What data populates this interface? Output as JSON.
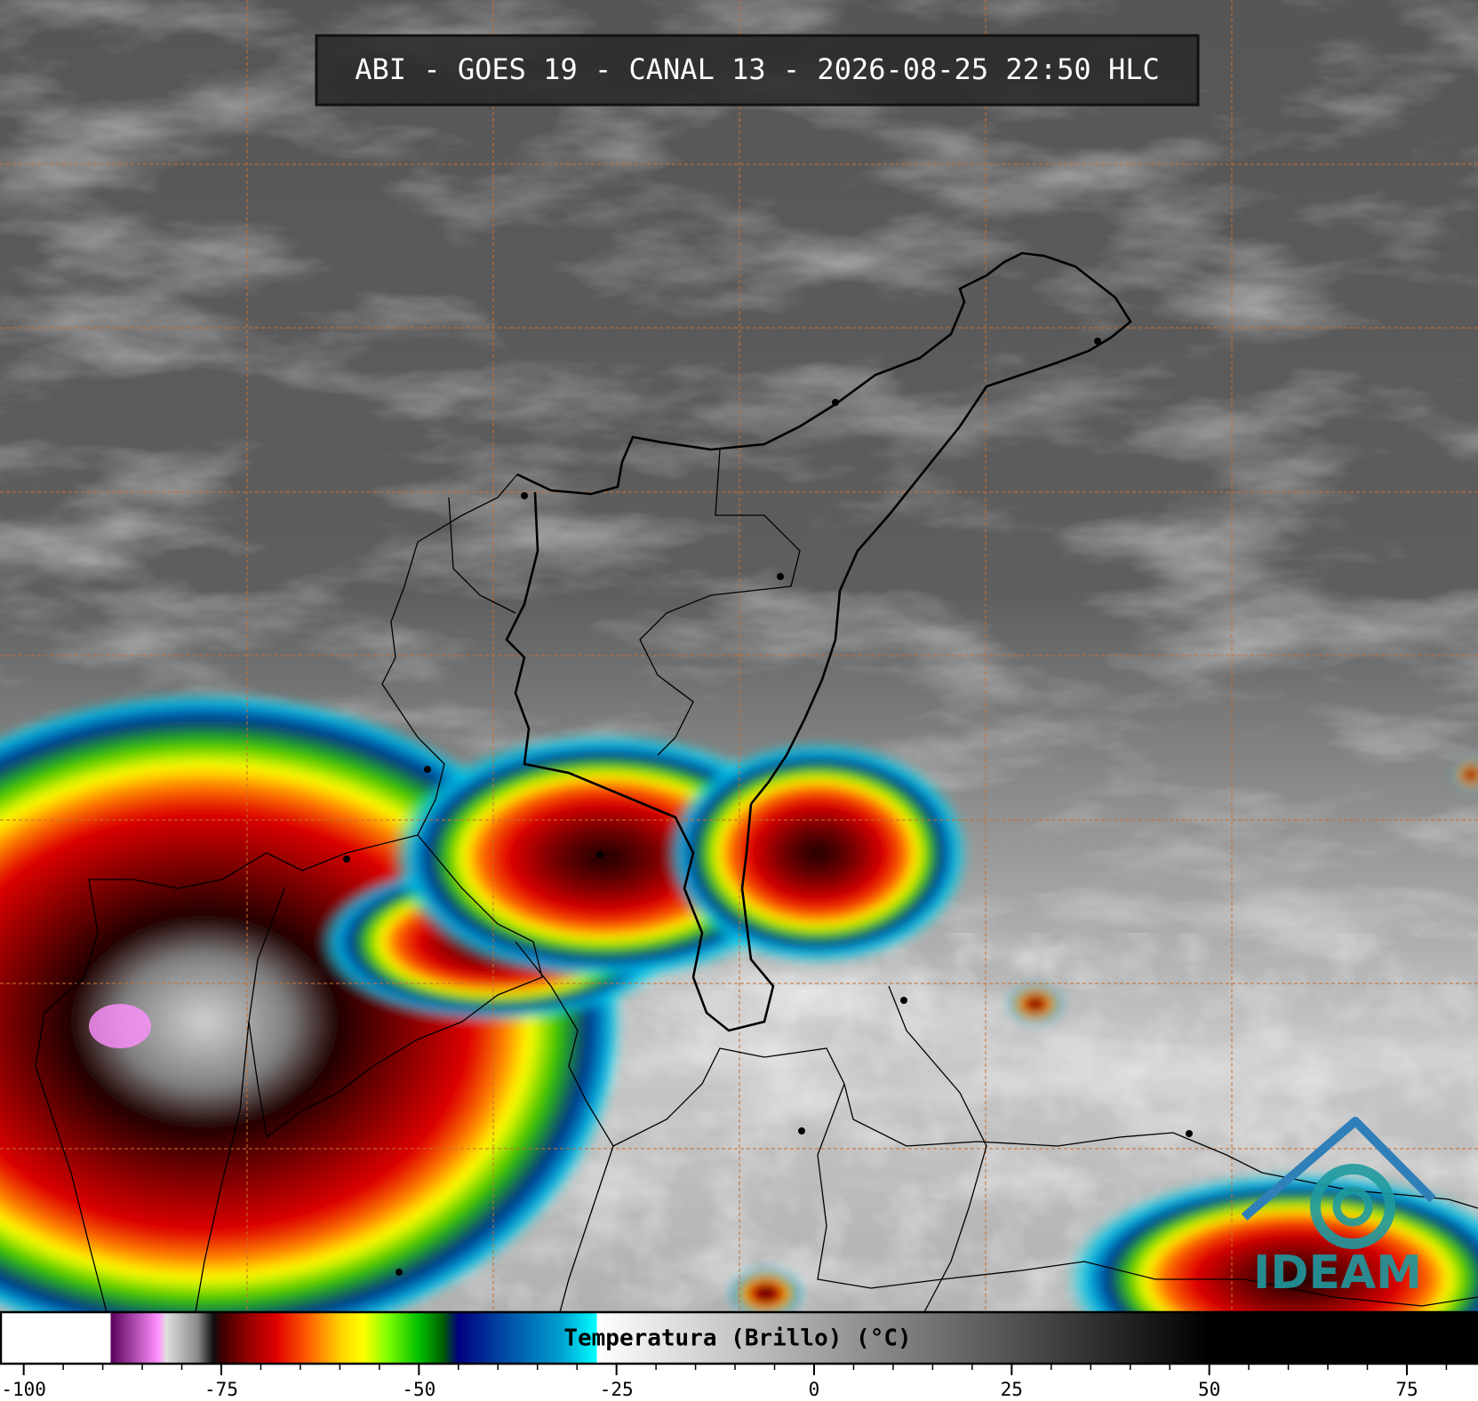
{
  "header": {
    "title": "ABI - GOES 19 - CANAL 13 - 2026-08-25 22:50 HLC"
  },
  "logo": {
    "text": "IDEAM"
  },
  "colorbar": {
    "label": "Temperatura (Brillo) (°C)",
    "lim": [
      -103,
      84
    ],
    "ticks": [
      -100,
      -75,
      -50,
      -25,
      0,
      25,
      50,
      75
    ],
    "minor_ticks": [
      -95,
      -90,
      -85,
      -80,
      -70,
      -65,
      -60,
      -55,
      -45,
      -40,
      -35,
      -30,
      -20,
      -15,
      -10,
      -5,
      5,
      10,
      15,
      20,
      30,
      35,
      40,
      45,
      55,
      60,
      65,
      70,
      80
    ],
    "stops": [
      {
        "value": -103,
        "color": "#ffffff"
      },
      {
        "value": -89,
        "color": "#ffffff"
      },
      {
        "value": -89,
        "color": "#5a005a"
      },
      {
        "value": -83,
        "color": "#ff90ff"
      },
      {
        "value": -82,
        "color": "#e0e0e0"
      },
      {
        "value": -78,
        "color": "#8a8a8a"
      },
      {
        "value": -76,
        "color": "#101010"
      },
      {
        "value": -75,
        "color": "#3a0000"
      },
      {
        "value": -72,
        "color": "#8b0000"
      },
      {
        "value": -68,
        "color": "#e00000"
      },
      {
        "value": -64,
        "color": "#ff6000"
      },
      {
        "value": -60,
        "color": "#ffd000"
      },
      {
        "value": -57,
        "color": "#ffff00"
      },
      {
        "value": -54,
        "color": "#80ff00"
      },
      {
        "value": -50,
        "color": "#00c000"
      },
      {
        "value": -47,
        "color": "#006000"
      },
      {
        "value": -45,
        "color": "#000080"
      },
      {
        "value": -40,
        "color": "#0040a0"
      },
      {
        "value": -32,
        "color": "#00a0d0"
      },
      {
        "value": -27.5,
        "color": "#00ffff"
      },
      {
        "value": -27.5,
        "color": "#ffffff"
      },
      {
        "value": 50,
        "color": "#000000"
      },
      {
        "value": 84,
        "color": "#000000"
      }
    ]
  }
}
